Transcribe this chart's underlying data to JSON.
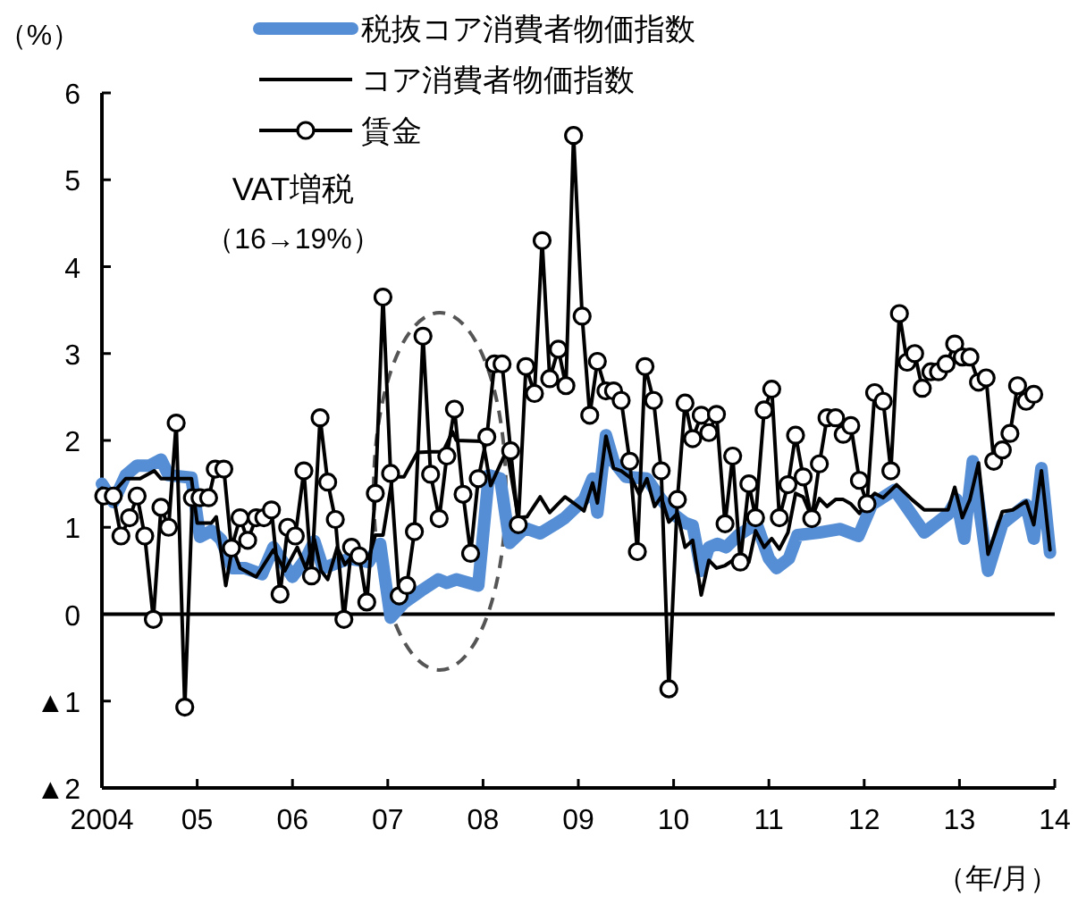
{
  "chart_data": {
    "type": "line",
    "ylabel": "（%）",
    "xlabel": "（年/月）",
    "annotations": [
      "VAT増税",
      "（16→19%）"
    ],
    "xlim": [
      2004,
      2014
    ],
    "ylim": [
      -2,
      6
    ],
    "xticks": [
      {
        "value": 2004,
        "label": "2004"
      },
      {
        "value": 2005,
        "label": "05"
      },
      {
        "value": 2006,
        "label": "06"
      },
      {
        "value": 2007,
        "label": "07"
      },
      {
        "value": 2008,
        "label": "08"
      },
      {
        "value": 2009,
        "label": "09"
      },
      {
        "value": 2010,
        "label": "10"
      },
      {
        "value": 2011,
        "label": "11"
      },
      {
        "value": 2012,
        "label": "12"
      },
      {
        "value": 2013,
        "label": "13"
      },
      {
        "value": 2014,
        "label": "14"
      }
    ],
    "yticks": [
      {
        "value": -2,
        "label": "▲2"
      },
      {
        "value": -1,
        "label": "▲1"
      },
      0,
      1,
      2,
      3,
      4,
      5,
      6
    ],
    "legend": "top",
    "ref_lines": [
      {
        "axis": "y",
        "value": 0,
        "color": "#000000"
      }
    ],
    "series": [
      {
        "name": "税抜コア消費者物価指数",
        "color": "#558ed5",
        "marker": "none",
        "x": [
          2004.0,
          2004.12,
          2004.25,
          2004.37,
          2004.5,
          2004.62,
          2004.7,
          2004.94,
          2005.03,
          2005.15,
          2005.25,
          2005.37,
          2005.5,
          2005.68,
          2005.8,
          2006.0,
          2006.14,
          2006.23,
          2006.32,
          2006.42,
          2006.6,
          2006.8,
          2006.92,
          2007.03,
          2007.17,
          2007.35,
          2007.53,
          2007.62,
          2007.72,
          2007.95,
          2008.06,
          2008.18,
          2008.28,
          2008.44,
          2008.6,
          2008.75,
          2008.86,
          2009.06,
          2009.15,
          2009.2,
          2009.29,
          2009.37,
          2009.5,
          2009.72,
          2009.87,
          2010.0,
          2010.12,
          2010.2,
          2010.29,
          2010.37,
          2010.46,
          2010.55,
          2010.68,
          2010.87,
          2011.0,
          2011.08,
          2011.21,
          2011.3,
          2011.53,
          2011.75,
          2011.94,
          2012.08,
          2012.32,
          2012.63,
          2012.88,
          2012.97,
          2013.05,
          2013.14,
          2013.3,
          2013.45,
          2013.7,
          2013.78,
          2013.86,
          2013.95
        ],
        "values": [
          1.5,
          1.29,
          1.6,
          1.71,
          1.71,
          1.78,
          1.6,
          1.57,
          0.89,
          0.96,
          0.86,
          0.53,
          0.53,
          0.46,
          0.77,
          0.43,
          0.64,
          0.84,
          0.53,
          0.57,
          0.64,
          0.6,
          0.81,
          -0.04,
          0.13,
          0.27,
          0.4,
          0.36,
          0.4,
          0.33,
          1.6,
          1.56,
          0.82,
          0.99,
          0.93,
          1.03,
          1.11,
          1.32,
          1.56,
          1.17,
          2.06,
          1.76,
          1.58,
          1.56,
          1.32,
          1.15,
          1.05,
          1.02,
          0.5,
          0.77,
          0.81,
          0.77,
          0.91,
          1.04,
          0.64,
          0.53,
          0.64,
          0.91,
          0.94,
          0.98,
          0.9,
          1.26,
          1.43,
          0.94,
          1.15,
          1.32,
          0.87,
          1.76,
          0.5,
          1.04,
          1.26,
          0.87,
          1.68,
          0.71
        ]
      },
      {
        "name": "コア消費者物価指数",
        "color": "#000000",
        "marker": "none",
        "x": [
          2004.0,
          2004.12,
          2004.25,
          2004.4,
          2004.55,
          2004.62,
          2004.94,
          2005.0,
          2005.15,
          2005.2,
          2005.3,
          2005.37,
          2005.45,
          2005.62,
          2005.8,
          2005.92,
          2006.05,
          2006.14,
          2006.23,
          2006.3,
          2006.37,
          2006.47,
          2006.55,
          2006.68,
          2006.8,
          2006.87,
          2006.95,
          2007.05,
          2007.17,
          2007.31,
          2007.45,
          2007.58,
          2007.68,
          2007.72,
          2008.0,
          2008.08,
          2008.25,
          2008.37,
          2008.46,
          2008.6,
          2008.7,
          2008.86,
          2008.95,
          2009.06,
          2009.15,
          2009.2,
          2009.29,
          2009.37,
          2009.45,
          2009.56,
          2009.64,
          2009.72,
          2009.8,
          2009.87,
          2009.95,
          2010.04,
          2010.12,
          2010.2,
          2010.29,
          2010.37,
          2010.45,
          2010.54,
          2010.65,
          2010.79,
          2010.86,
          2010.95,
          2011.03,
          2011.11,
          2011.2,
          2011.28,
          2011.36,
          2011.45,
          2011.53,
          2011.61,
          2011.7,
          2011.78,
          2011.86,
          2011.95,
          2012.03,
          2012.11,
          2012.2,
          2012.34,
          2012.5,
          2012.63,
          2012.88,
          2012.95,
          2013.03,
          2013.11,
          2013.2,
          2013.3,
          2013.45,
          2013.56,
          2013.7,
          2013.78,
          2013.86,
          2013.95
        ],
        "values": [
          1.45,
          1.4,
          1.56,
          1.56,
          1.65,
          1.56,
          1.56,
          1.05,
          1.05,
          1.12,
          0.33,
          0.77,
          0.53,
          0.43,
          0.74,
          0.5,
          0.77,
          0.53,
          0.86,
          0.5,
          0.4,
          0.77,
          0.57,
          0.74,
          0.64,
          0.91,
          0.91,
          1.58,
          1.58,
          1.86,
          1.87,
          1.87,
          2.1,
          2.0,
          1.99,
          1.48,
          1.89,
          1.11,
          1.12,
          1.35,
          1.17,
          1.35,
          1.28,
          1.19,
          1.51,
          1.28,
          2.05,
          1.68,
          1.65,
          1.56,
          1.38,
          1.56,
          1.24,
          1.35,
          1.06,
          1.16,
          0.77,
          0.85,
          0.22,
          0.62,
          0.53,
          0.56,
          0.64,
          0.6,
          0.96,
          0.77,
          0.87,
          0.75,
          0.94,
          1.39,
          1.35,
          1.11,
          1.33,
          1.24,
          1.32,
          1.32,
          1.27,
          1.16,
          1.3,
          1.39,
          1.34,
          1.49,
          1.32,
          1.2,
          1.2,
          1.46,
          1.11,
          1.32,
          1.74,
          0.69,
          1.18,
          1.2,
          1.3,
          1.03,
          1.65,
          0.74
        ]
      },
      {
        "name": "賃金",
        "color": "#000000",
        "marker": "circle",
        "x": [
          2004.02,
          2004.12,
          2004.2,
          2004.29,
          2004.37,
          2004.45,
          2004.54,
          2004.62,
          2004.7,
          2004.78,
          2004.87,
          2004.95,
          2005.03,
          2005.12,
          2005.19,
          2005.28,
          2005.36,
          2005.45,
          2005.53,
          2005.62,
          2005.7,
          2005.78,
          2005.87,
          2005.95,
          2006.03,
          2006.12,
          2006.2,
          2006.29,
          2006.37,
          2006.45,
          2006.54,
          2006.62,
          2006.7,
          2006.78,
          2006.87,
          2006.95,
          2007.03,
          2007.12,
          2007.2,
          2007.28,
          2007.37,
          2007.45,
          2007.54,
          2007.62,
          2007.7,
          2007.79,
          2007.87,
          2007.95,
          2008.04,
          2008.12,
          2008.2,
          2008.29,
          2008.37,
          2008.45,
          2008.54,
          2008.62,
          2008.7,
          2008.79,
          2008.87,
          2008.95,
          2009.04,
          2009.12,
          2009.2,
          2009.29,
          2009.37,
          2009.45,
          2009.54,
          2009.62,
          2009.7,
          2009.79,
          2009.87,
          2009.95,
          2010.04,
          2010.12,
          2010.2,
          2010.29,
          2010.37,
          2010.45,
          2010.54,
          2010.62,
          2010.7,
          2010.79,
          2010.86,
          2010.95,
          2011.03,
          2011.11,
          2011.2,
          2011.28,
          2011.36,
          2011.45,
          2011.53,
          2011.61,
          2011.7,
          2011.78,
          2011.86,
          2011.95,
          2012.03,
          2012.11,
          2012.2,
          2012.28,
          2012.37,
          2012.45,
          2012.53,
          2012.61,
          2012.7,
          2012.78,
          2012.86,
          2012.95,
          2013.03,
          2013.11,
          2013.2,
          2013.28,
          2013.36,
          2013.45,
          2013.53,
          2013.61,
          2013.7,
          2013.78
        ],
        "values": [
          1.36,
          1.36,
          0.9,
          1.11,
          1.36,
          0.9,
          -0.06,
          1.23,
          1.0,
          2.2,
          -1.07,
          1.34,
          1.34,
          1.34,
          1.67,
          1.67,
          0.76,
          1.11,
          0.85,
          1.11,
          1.11,
          1.2,
          0.23,
          1.0,
          0.9,
          1.65,
          0.44,
          2.26,
          1.52,
          1.09,
          -0.06,
          0.77,
          0.67,
          0.14,
          1.39,
          3.65,
          1.62,
          0.21,
          0.33,
          0.95,
          3.2,
          1.61,
          1.1,
          1.82,
          2.36,
          1.38,
          0.7,
          1.56,
          2.04,
          2.88,
          2.88,
          1.88,
          1.03,
          2.85,
          2.54,
          4.3,
          2.71,
          3.05,
          2.63,
          5.51,
          3.43,
          2.29,
          2.91,
          2.57,
          2.57,
          2.46,
          1.76,
          0.72,
          2.85,
          2.46,
          1.65,
          -0.86,
          1.32,
          2.43,
          2.02,
          2.29,
          2.09,
          2.3,
          1.04,
          1.82,
          0.6,
          1.5,
          1.11,
          2.35,
          2.59,
          1.11,
          1.49,
          2.06,
          1.58,
          1.1,
          1.73,
          2.26,
          2.26,
          2.07,
          2.17,
          1.54,
          1.27,
          2.55,
          2.45,
          1.65,
          3.46,
          2.9,
          3.0,
          2.6,
          2.79,
          2.79,
          2.88,
          3.11,
          2.96,
          2.96,
          2.67,
          2.72,
          1.76,
          1.89,
          2.08,
          2.63,
          2.45,
          2.53
        ]
      }
    ]
  }
}
